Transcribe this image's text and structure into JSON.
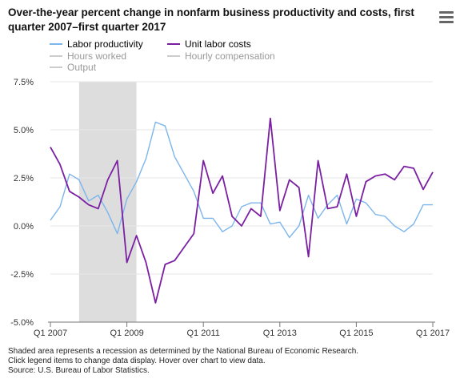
{
  "title": "Over-the-year percent change in nonfarm business productivity and costs, first quarter 2007–first quarter 2017",
  "menu_icon": "hamburger-menu-icon",
  "legend": [
    {
      "label": "Labor productivity",
      "color": "#7cb5ec",
      "hidden": false
    },
    {
      "label": "Unit labor costs",
      "color": "#7b1fa2",
      "hidden": false
    },
    {
      "label": "Hours worked",
      "color": "#cccccc",
      "hidden": true
    },
    {
      "label": "Hourly compensation",
      "color": "#cccccc",
      "hidden": true
    },
    {
      "label": "Output",
      "color": "#cccccc",
      "hidden": true
    }
  ],
  "footnotes": [
    "Shaded area represents a recession as determined by the National Bureau of Economic Research.",
    "Click legend items to change data display. Hover over chart to view data.",
    "Source: U.S. Bureau of Labor Statistics."
  ],
  "chart_data": {
    "type": "line",
    "categories": [
      "Q1 2007",
      "Q2 2007",
      "Q3 2007",
      "Q4 2007",
      "Q1 2008",
      "Q2 2008",
      "Q3 2008",
      "Q4 2008",
      "Q1 2009",
      "Q2 2009",
      "Q3 2009",
      "Q4 2009",
      "Q1 2010",
      "Q2 2010",
      "Q3 2010",
      "Q4 2010",
      "Q1 2011",
      "Q2 2011",
      "Q3 2011",
      "Q4 2011",
      "Q1 2012",
      "Q2 2012",
      "Q3 2012",
      "Q4 2012",
      "Q1 2013",
      "Q2 2013",
      "Q3 2013",
      "Q4 2013",
      "Q1 2014",
      "Q2 2014",
      "Q3 2014",
      "Q4 2014",
      "Q1 2015",
      "Q2 2015",
      "Q3 2015",
      "Q4 2015",
      "Q1 2016",
      "Q2 2016",
      "Q3 2016",
      "Q4 2016",
      "Q1 2017"
    ],
    "x_tick_labels": [
      "Q1 2007",
      "Q1 2009",
      "Q1 2011",
      "Q1 2013",
      "Q1 2015",
      "Q1 2017"
    ],
    "y_ticks": [
      -5.0,
      -2.5,
      0.0,
      2.5,
      5.0,
      7.5
    ],
    "y_tick_labels": [
      "-5.0%",
      "-2.5%",
      "0.0%",
      "2.5%",
      "5.0%",
      "7.5%"
    ],
    "ylim": [
      -5.0,
      7.5
    ],
    "recession": {
      "start": "Q4 2007",
      "end": "Q2 2009",
      "color": "#dddddd"
    },
    "series": [
      {
        "name": "Labor productivity",
        "color": "#7cb5ec",
        "values": [
          0.3,
          1.0,
          2.7,
          2.4,
          1.3,
          1.6,
          0.7,
          -0.4,
          1.4,
          2.3,
          3.5,
          5.4,
          5.2,
          3.6,
          2.7,
          1.8,
          0.4,
          0.4,
          -0.3,
          0.0,
          1.0,
          1.2,
          1.2,
          0.1,
          0.2,
          -0.6,
          0.0,
          1.6,
          0.4,
          1.1,
          1.6,
          0.1,
          1.4,
          1.2,
          0.6,
          0.5,
          0.0,
          -0.3,
          0.1,
          1.1,
          1.1
        ]
      },
      {
        "name": "Unit labor costs",
        "color": "#7b1fa2",
        "values": [
          4.1,
          3.2,
          1.8,
          1.5,
          1.1,
          0.9,
          2.4,
          3.4,
          -1.9,
          -0.5,
          -1.9,
          -4.0,
          -2.0,
          -1.8,
          -1.1,
          -0.4,
          3.4,
          1.7,
          2.6,
          0.5,
          0.0,
          0.9,
          0.5,
          5.6,
          0.8,
          2.4,
          2.0,
          -1.6,
          3.4,
          0.9,
          1.0,
          2.7,
          0.5,
          2.3,
          2.6,
          2.7,
          2.4,
          3.1,
          3.0,
          1.9,
          2.8
        ]
      }
    ]
  }
}
